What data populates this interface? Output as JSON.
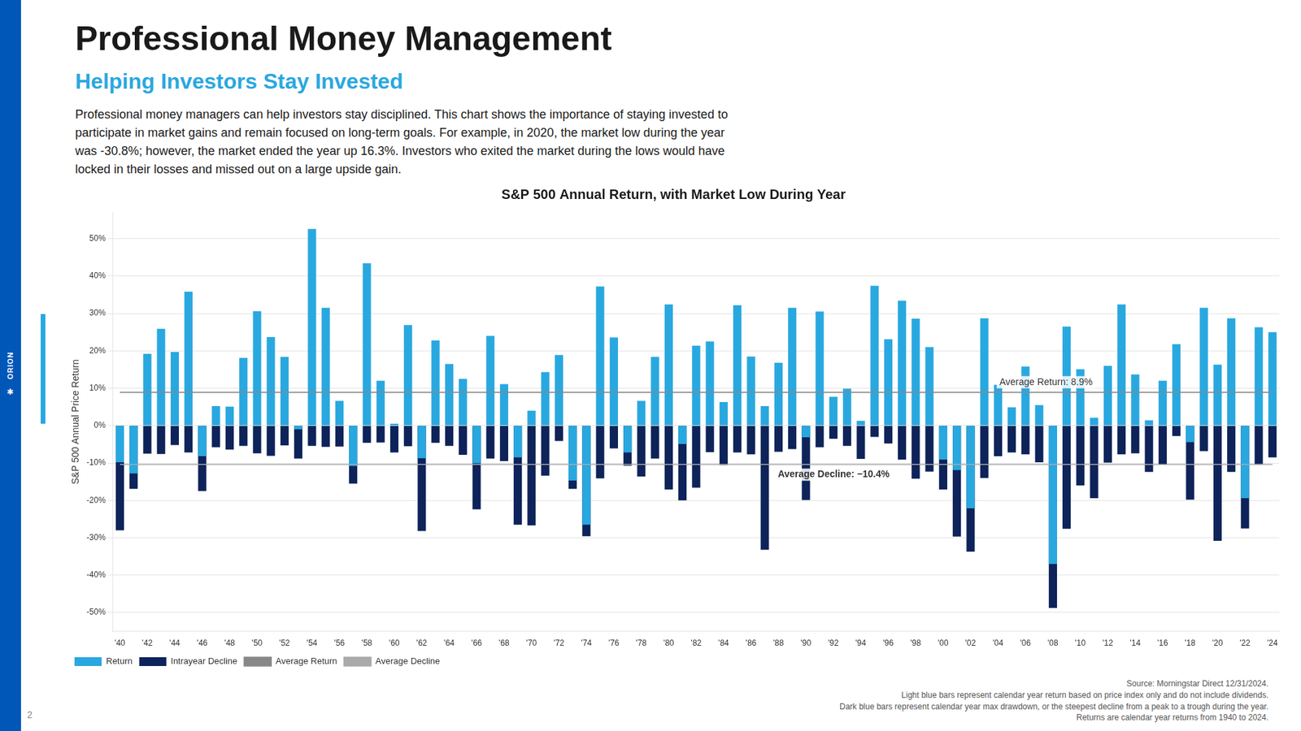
{
  "page": {
    "brand": "ORION",
    "icon": "✱",
    "page_number": "2",
    "heading": "Professional Money Management",
    "subheading": "Helping Investors Stay Invested",
    "body": [
      "Professional money managers can help investors stay disciplined. This chart shows the importance of staying invested to",
      "participate in market gains and remain focused on long-term goals. For example, in 2020, the market low during the year",
      "was -30.8%; however, the market ended the year up 16.3%. Investors who exited the market during the lows would have",
      "locked in their losses and missed out on a large upside gain."
    ],
    "notes": [
      "Source: Morningstar Direct 12/31/2024.",
      "Light blue bars represent calendar year return based on price index only and do not include dividends.",
      "Dark blue bars represent calendar year max drawdown, or the steepest decline from a peak to a trough during the year.",
      "Returns are calendar year returns from 1940 to 2024."
    ]
  },
  "chart_data": {
    "type": "bar",
    "title": "S&P 500 Annual Return, with Market Low During Year",
    "ylabel": "S&P 500 Annual Price Return",
    "categories": [
      "'40",
      null,
      "'42",
      null,
      "'44",
      null,
      "'46",
      null,
      "'48",
      null,
      "'50",
      null,
      "'52",
      null,
      "'54",
      null,
      "'56",
      null,
      "'58",
      null,
      "'60",
      null,
      "'62",
      null,
      "'64",
      null,
      "'66",
      null,
      "'68",
      null,
      "'70",
      null,
      "'72",
      null,
      "'74",
      null,
      "'76",
      null,
      "'78",
      null,
      "'80",
      null,
      "'82",
      null,
      "'84",
      null,
      "'86",
      null,
      "'88",
      null,
      "'90",
      null,
      "'92",
      null,
      "'94",
      null,
      "'96",
      null,
      "'98",
      null,
      "'00",
      null,
      "'02",
      null,
      "'04",
      null,
      "'06",
      null,
      "'08",
      null,
      "'10",
      null,
      "'12",
      null,
      "'14",
      null,
      "'16",
      null,
      "'18",
      null,
      "'20",
      null,
      "'22",
      null,
      "'24"
    ],
    "series": [
      {
        "name": "Return",
        "type": "bar",
        "color": "#29a8e0",
        "values": [
          -9.8,
          -12.8,
          19.2,
          25.9,
          19.7,
          35.8,
          -8.2,
          5.2,
          5.1,
          18.1,
          30.6,
          23.7,
          18.4,
          -1.0,
          52.6,
          31.5,
          6.6,
          -10.8,
          43.4,
          12.0,
          0.5,
          26.9,
          -8.7,
          22.8,
          16.5,
          12.5,
          -10.1,
          24.0,
          11.1,
          -8.5,
          4.0,
          14.3,
          18.9,
          -14.7,
          -26.5,
          37.2,
          23.6,
          -7.2,
          6.6,
          18.4,
          32.4,
          -4.9,
          21.4,
          22.5,
          6.3,
          32.2,
          18.5,
          5.2,
          16.8,
          31.5,
          -3.1,
          30.5,
          7.7,
          9.9,
          1.3,
          37.4,
          23.1,
          33.4,
          28.6,
          21.0,
          -9.1,
          -11.9,
          -22.1,
          28.7,
          10.9,
          4.9,
          15.8,
          5.5,
          -37.0,
          26.5,
          15.1,
          2.1,
          16.0,
          32.4,
          13.7,
          1.4,
          12.0,
          21.8,
          -4.4,
          31.5,
          16.3,
          28.7,
          -19.4,
          26.3,
          25.0
        ]
      },
      {
        "name": "Intrayear Decline",
        "type": "bar",
        "color": "#0d2359",
        "values": [
          -28.0,
          -16.9,
          -7.5,
          -7.6,
          -5.2,
          -7.2,
          -17.5,
          -5.8,
          -6.4,
          -5.4,
          -7.4,
          -8.1,
          -5.3,
          -8.8,
          -5.4,
          -5.7,
          -5.6,
          -15.5,
          -4.6,
          -4.5,
          -7.2,
          -5.5,
          -28.2,
          -4.6,
          -5.4,
          -7.8,
          -22.4,
          -8.8,
          -9.5,
          -26.5,
          -26.7,
          -13.4,
          -4.1,
          -16.9,
          -29.6,
          -14.1,
          -6.1,
          -10.7,
          -13.6,
          -8.8,
          -17.1,
          -20.0,
          -16.6,
          -7.1,
          -10.6,
          -7.2,
          -7.7,
          -33.2,
          -7.0,
          -6.3,
          -19.9,
          -5.8,
          -3.5,
          -5.4,
          -8.9,
          -3.0,
          -4.8,
          -9.1,
          -14.2,
          -12.3,
          -17.1,
          -29.7,
          -33.7,
          -14.0,
          -8.2,
          -7.2,
          -7.7,
          -9.8,
          -48.8,
          -27.6,
          -16.0,
          -19.4,
          -9.9,
          -7.7,
          -7.4,
          -12.4,
          -10.5,
          -2.8,
          -19.8,
          -6.8,
          -30.8,
          -12.4,
          -27.5,
          -10.3,
          -8.5
        ]
      },
      {
        "name": "Average Return",
        "type": "line",
        "color": "#888888",
        "values": [
          8.9,
          8.9,
          8.9,
          8.9,
          8.9,
          8.9,
          8.9,
          8.9,
          8.9,
          8.9,
          8.9,
          8.9,
          8.9,
          8.9,
          8.9,
          8.9,
          8.9,
          8.9,
          8.9,
          8.9,
          8.9,
          8.9,
          8.9,
          8.9,
          8.9,
          8.9,
          8.9,
          8.9,
          8.9,
          8.9,
          8.9,
          8.9,
          8.9,
          8.9,
          8.9,
          8.9,
          8.9,
          8.9,
          8.9,
          8.9,
          8.9,
          8.9,
          8.9,
          8.9,
          8.9,
          8.9,
          8.9,
          8.9,
          8.9,
          8.9,
          8.9,
          8.9,
          8.9,
          8.9,
          8.9,
          8.9,
          8.9,
          8.9,
          8.9,
          8.9,
          8.9,
          8.9,
          8.9,
          8.9,
          8.9,
          8.9,
          8.9,
          8.9,
          8.9,
          8.9,
          8.9,
          8.9,
          8.9,
          8.9,
          8.9,
          8.9,
          8.9,
          8.9,
          8.9,
          8.9,
          8.9,
          8.9,
          8.9,
          8.9,
          8.9
        ]
      },
      {
        "name": "Average Decline",
        "type": "line",
        "color": "#aaaaaa",
        "values": [
          -10.4,
          -10.4,
          -10.4,
          -10.4,
          -10.4,
          -10.4,
          -10.4,
          -10.4,
          -10.4,
          -10.4,
          -10.4,
          -10.4,
          -10.4,
          -10.4,
          -10.4,
          -10.4,
          -10.4,
          -10.4,
          -10.4,
          -10.4,
          -10.4,
          -10.4,
          -10.4,
          -10.4,
          -10.4,
          -10.4,
          -10.4,
          -10.4,
          -10.4,
          -10.4,
          -10.4,
          -10.4,
          -10.4,
          -10.4,
          -10.4,
          -10.4,
          -10.4,
          -10.4,
          -10.4,
          -10.4,
          -10.4,
          -10.4,
          -10.4,
          -10.4,
          -10.4,
          -10.4,
          -10.4,
          -10.4,
          -10.4,
          -10.4,
          -10.4,
          -10.4,
          -10.4,
          -10.4,
          -10.4,
          -10.4,
          -10.4,
          -10.4,
          -10.4,
          -10.4,
          -10.4,
          -10.4,
          -10.4,
          -10.4,
          -10.4,
          -10.4,
          -10.4,
          -10.4,
          -10.4,
          -10.4,
          -10.4,
          -10.4,
          -10.4,
          -10.4,
          -10.4,
          -10.4,
          -10.4,
          -10.4,
          -10.4,
          -10.4,
          -10.4,
          -10.4,
          -10.4,
          -10.4,
          -10.4
        ]
      }
    ],
    "annotations": [
      {
        "text": "Average Return: 8.9%",
        "value": 8.9
      },
      {
        "text": "Average Decline: −10.4%",
        "value": -10.4
      }
    ],
    "ylim": [
      -55,
      57
    ],
    "yticks": [
      {
        "value": -50,
        "label": "-50%"
      },
      {
        "value": -40,
        "label": "-40%"
      },
      {
        "value": -30,
        "label": "-30%"
      },
      {
        "value": -20,
        "label": "-20%"
      },
      {
        "value": -10,
        "label": "-10%"
      },
      {
        "value": 0,
        "label": "0%"
      },
      {
        "value": 10,
        "label": "10%"
      },
      {
        "value": 20,
        "label": "20%"
      },
      {
        "value": 30,
        "label": "30%"
      },
      {
        "value": 40,
        "label": "40%"
      },
      {
        "value": 50,
        "label": "50%"
      }
    ],
    "grid": "y",
    "legend": "lower left"
  }
}
